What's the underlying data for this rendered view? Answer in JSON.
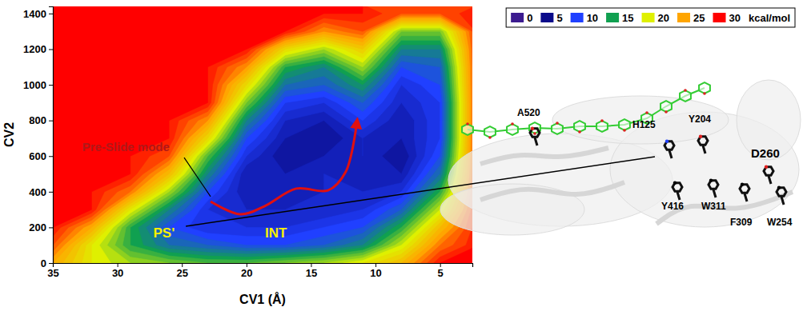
{
  "chart_data": {
    "type": "contour",
    "x_label": "CV1 (Å)",
    "y_label": "CV2",
    "x": [
      35,
      32,
      29,
      26,
      23,
      20,
      17,
      14,
      11,
      8,
      5,
      2
    ],
    "y": [
      0,
      100,
      200,
      300,
      400,
      500,
      600,
      700,
      800,
      900,
      1000,
      1100,
      1200,
      1300,
      1400
    ],
    "z": [
      [
        25,
        21,
        19,
        18,
        17,
        17,
        18,
        19,
        21,
        24,
        30,
        30
      ],
      [
        28,
        21,
        16,
        13,
        12,
        11,
        11,
        12,
        14,
        20,
        27,
        30
      ],
      [
        30,
        25,
        16,
        11,
        9,
        9,
        9,
        10,
        11,
        16,
        24,
        30
      ],
      [
        30,
        30,
        21,
        14,
        9,
        8,
        8,
        8,
        9,
        12,
        20,
        30
      ],
      [
        30,
        30,
        27,
        19,
        11,
        7,
        7,
        8,
        8,
        9,
        16,
        30
      ],
      [
        30,
        30,
        30,
        24,
        14,
        7,
        7,
        8,
        7,
        7,
        13,
        30
      ],
      [
        30,
        30,
        30,
        28,
        17,
        9,
        6,
        7,
        8,
        6,
        11,
        30
      ],
      [
        30,
        30,
        30,
        30,
        22,
        11,
        7,
        6,
        8,
        7,
        10,
        30
      ],
      [
        30,
        30,
        30,
        30,
        26,
        14,
        8,
        7,
        10,
        7,
        10,
        30
      ],
      [
        30,
        30,
        30,
        30,
        30,
        18,
        10,
        9,
        12,
        8,
        10,
        30
      ],
      [
        30,
        30,
        30,
        30,
        30,
        22,
        13,
        12,
        15,
        9,
        11,
        30
      ],
      [
        30,
        30,
        30,
        30,
        30,
        26,
        16,
        14,
        19,
        11,
        12,
        30
      ],
      [
        30,
        30,
        30,
        30,
        30,
        30,
        22,
        19,
        23,
        14,
        14,
        30
      ],
      [
        30,
        30,
        30,
        30,
        30,
        30,
        30,
        26,
        28,
        18,
        18,
        30
      ],
      [
        30,
        30,
        30,
        30,
        30,
        30,
        30,
        30,
        30,
        28,
        28,
        30
      ]
    ],
    "xlim": [
      35,
      2.5
    ],
    "ylim": [
      0,
      1440
    ],
    "xticks": [
      35,
      30,
      25,
      20,
      15,
      10,
      5
    ],
    "yticks": [
      0,
      200,
      400,
      600,
      800,
      1000,
      1200,
      1400
    ],
    "colorbar": {
      "range": [
        0,
        30
      ],
      "ticks": [
        0,
        5,
        10,
        15,
        20,
        25,
        30
      ],
      "colors": [
        "#3c1b8f",
        "#0b0b8a",
        "#2040ff",
        "#10a050",
        "#dff000",
        "#ffa500",
        "#ff0000"
      ],
      "label": "kcal/mol"
    },
    "legend": "top right",
    "annotations": [
      {
        "text": "Pre-Slide mode",
        "color": "#b01818"
      },
      {
        "text": "INT",
        "color": "#f5f000"
      },
      {
        "text": "PS'",
        "color": "#f5f000"
      }
    ]
  },
  "structure": {
    "residues": [
      "A520",
      "H125",
      "Y204",
      "D260",
      "Y416",
      "W311",
      "F309",
      "W254"
    ]
  }
}
